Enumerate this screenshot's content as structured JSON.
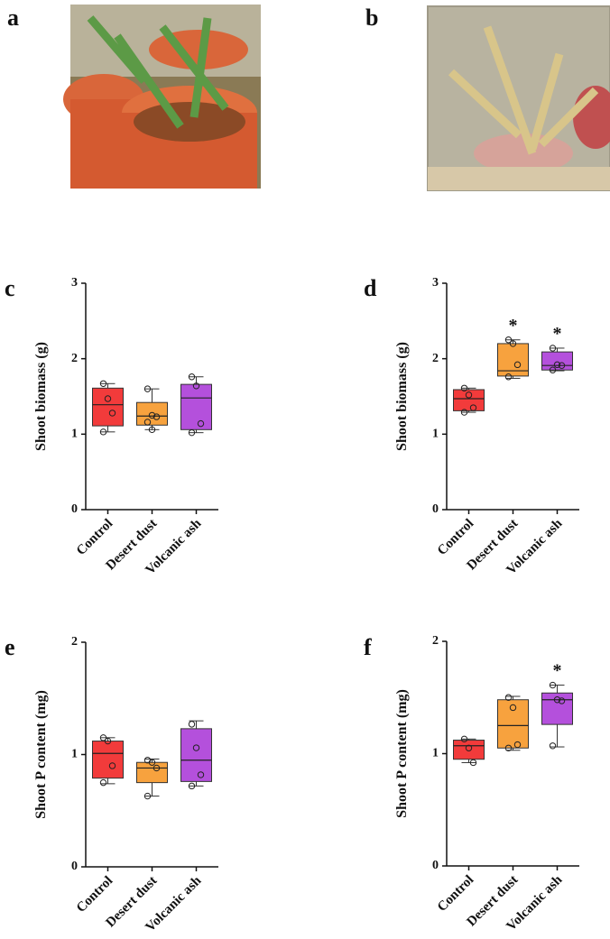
{
  "photos": [
    {
      "label": "a"
    },
    {
      "label": "b"
    }
  ],
  "chart_data": [
    {
      "type": "box",
      "label": "c",
      "ylabel": "Shoot biomass (g)",
      "ylim": [
        0,
        3
      ],
      "yticks": [
        0,
        1,
        2,
        3
      ],
      "categories": [
        "Control",
        "Desert dust",
        "Volcanic ash"
      ],
      "colors": [
        "#f23b3b",
        "#f7a23e",
        "#b450dc"
      ],
      "boxes": [
        {
          "min": 1.03,
          "q1": 1.11,
          "median": 1.39,
          "q3": 1.61,
          "max": 1.67,
          "points": [
            1.67,
            1.47,
            1.28,
            1.03
          ]
        },
        {
          "min": 1.06,
          "q1": 1.12,
          "median": 1.24,
          "q3": 1.42,
          "max": 1.6,
          "points": [
            1.6,
            1.25,
            1.23,
            1.16,
            1.06
          ]
        },
        {
          "min": 1.02,
          "q1": 1.06,
          "median": 1.48,
          "q3": 1.66,
          "max": 1.76,
          "points": [
            1.76,
            1.64,
            1.14,
            1.02
          ]
        }
      ]
    },
    {
      "type": "box",
      "label": "d",
      "ylabel": "Shoot biomass (g)",
      "ylim": [
        0,
        3
      ],
      "yticks": [
        0,
        1,
        2,
        3
      ],
      "categories": [
        "Control",
        "Desert dust",
        "Volcanic ash"
      ],
      "colors": [
        "#f23b3b",
        "#f7a23e",
        "#b450dc"
      ],
      "boxes": [
        {
          "min": 1.29,
          "q1": 1.31,
          "median": 1.47,
          "q3": 1.59,
          "max": 1.61,
          "points": [
            1.61,
            1.52,
            1.35,
            1.29
          ]
        },
        {
          "min": 1.74,
          "q1": 1.77,
          "median": 1.84,
          "q3": 2.2,
          "max": 2.25,
          "points": [
            2.25,
            2.2,
            1.92,
            1.76
          ],
          "annotation": "*"
        },
        {
          "min": 1.84,
          "q1": 1.85,
          "median": 1.91,
          "q3": 2.09,
          "max": 2.14,
          "points": [
            2.14,
            1.92,
            1.91,
            1.85
          ],
          "annotation": "*"
        }
      ]
    },
    {
      "type": "box",
      "label": "e",
      "ylabel": "Shoot P content (mg)",
      "ylim": [
        0,
        2
      ],
      "yticks": [
        0,
        1,
        2
      ],
      "categories": [
        "Control",
        "Desert dust",
        "Volcanic ash"
      ],
      "colors": [
        "#f23b3b",
        "#f7a23e",
        "#b450dc"
      ],
      "boxes": [
        {
          "min": 0.74,
          "q1": 0.79,
          "median": 1.01,
          "q3": 1.12,
          "max": 1.15,
          "points": [
            1.15,
            1.12,
            0.9,
            0.75
          ]
        },
        {
          "min": 0.63,
          "q1": 0.75,
          "median": 0.88,
          "q3": 0.93,
          "max": 0.96,
          "points": [
            0.95,
            0.93,
            0.88,
            0.63
          ]
        },
        {
          "min": 0.72,
          "q1": 0.76,
          "median": 0.95,
          "q3": 1.23,
          "max": 1.3,
          "points": [
            1.27,
            1.06,
            0.82,
            0.72
          ]
        }
      ]
    },
    {
      "type": "box",
      "label": "f",
      "ylabel": "Shoot P content (mg)",
      "ylim": [
        0,
        2
      ],
      "yticks": [
        0,
        1,
        2
      ],
      "categories": [
        "Control",
        "Desert dust",
        "Volcanic ash"
      ],
      "colors": [
        "#f23b3b",
        "#f7a23e",
        "#b450dc"
      ],
      "boxes": [
        {
          "min": 0.92,
          "q1": 0.95,
          "median": 1.07,
          "q3": 1.12,
          "max": 1.13,
          "points": [
            1.13,
            1.05,
            0.92
          ]
        },
        {
          "min": 1.03,
          "q1": 1.05,
          "median": 1.25,
          "q3": 1.48,
          "max": 1.51,
          "points": [
            1.5,
            1.41,
            1.08,
            1.05
          ]
        },
        {
          "min": 1.06,
          "q1": 1.26,
          "median": 1.48,
          "q3": 1.54,
          "max": 1.61,
          "points": [
            1.61,
            1.48,
            1.47,
            1.07
          ],
          "annotation": "*"
        }
      ]
    }
  ]
}
